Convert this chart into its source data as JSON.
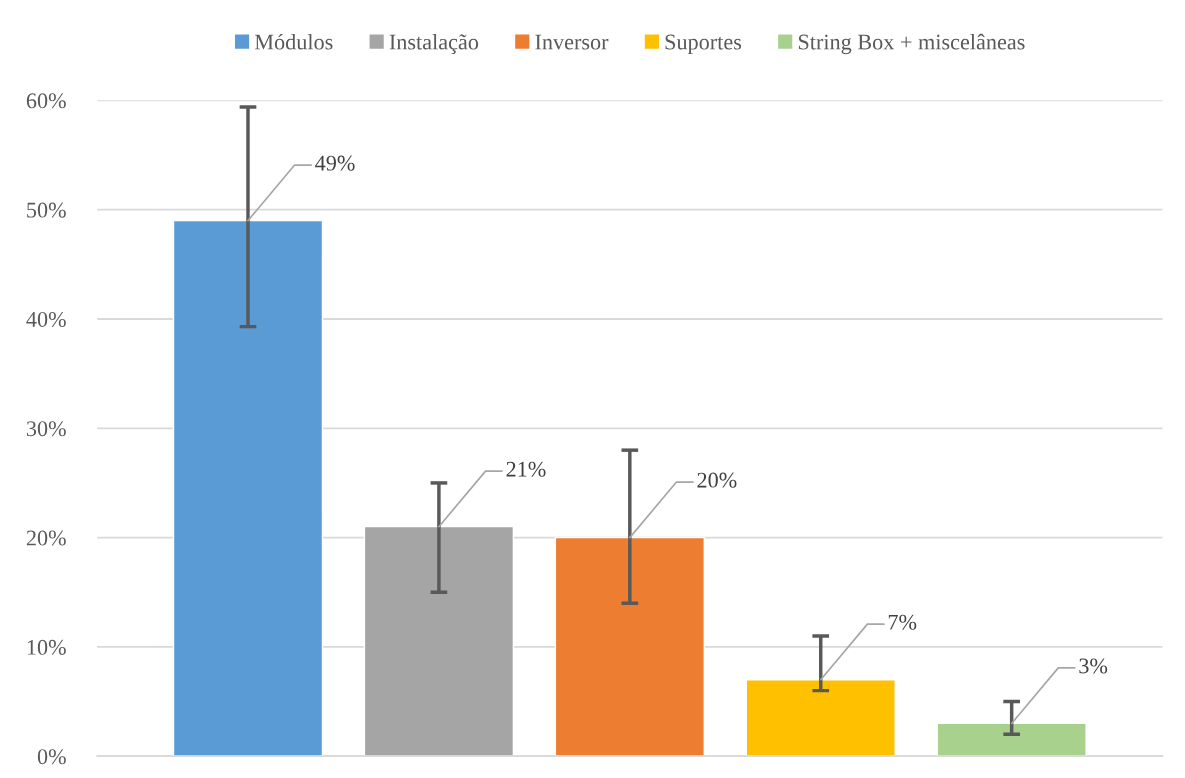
{
  "chart_data": {
    "type": "bar",
    "categories": [
      null,
      null,
      null,
      null,
      null
    ],
    "series": [
      {
        "name": "Módulos",
        "color": "#5b9bd5",
        "values": [
          49,
          null,
          null,
          null,
          null
        ],
        "errors": [
          [
            39.3,
            59.4
          ],
          null,
          null,
          null,
          null
        ],
        "value_labels": [
          "49%",
          null,
          null,
          null,
          null
        ]
      },
      {
        "name": "Instalação",
        "color": "#a5a5a5",
        "values": [
          null,
          21,
          null,
          null,
          null
        ],
        "errors": [
          null,
          [
            15,
            25
          ],
          null,
          null,
          null
        ],
        "value_labels": [
          null,
          "21%",
          null,
          null,
          null
        ]
      },
      {
        "name": "Inversor",
        "color": "#ed7d31",
        "values": [
          null,
          null,
          20,
          null,
          null
        ],
        "errors": [
          null,
          null,
          [
            14,
            28
          ],
          null,
          null
        ],
        "value_labels": [
          null,
          null,
          "20%",
          null,
          null
        ]
      },
      {
        "name": "Suportes",
        "color": "#ffc000",
        "values": [
          null,
          null,
          null,
          7,
          null
        ],
        "errors": [
          null,
          null,
          null,
          [
            6,
            11
          ],
          null
        ],
        "value_labels": [
          null,
          null,
          null,
          "7%",
          null
        ]
      },
      {
        "name": "String Box + miscelâneas",
        "color": "#a9d18e",
        "values": [
          null,
          null,
          null,
          null,
          3
        ],
        "errors": [
          null,
          null,
          null,
          null,
          [
            2,
            5
          ]
        ],
        "value_labels": [
          null,
          null,
          null,
          null,
          "3%"
        ]
      }
    ],
    "ylim": [
      0,
      60
    ],
    "yticks": [
      {
        "value": 0,
        "label": "0%"
      },
      {
        "value": 10,
        "label": "10%"
      },
      {
        "value": 20,
        "label": "20%"
      },
      {
        "value": 30,
        "label": "30%"
      },
      {
        "value": 40,
        "label": "40%"
      },
      {
        "value": 50,
        "label": "50%"
      },
      {
        "value": 60,
        "label": "60%"
      }
    ],
    "grid": "y",
    "legend": "top",
    "tick_labels": "y"
  }
}
